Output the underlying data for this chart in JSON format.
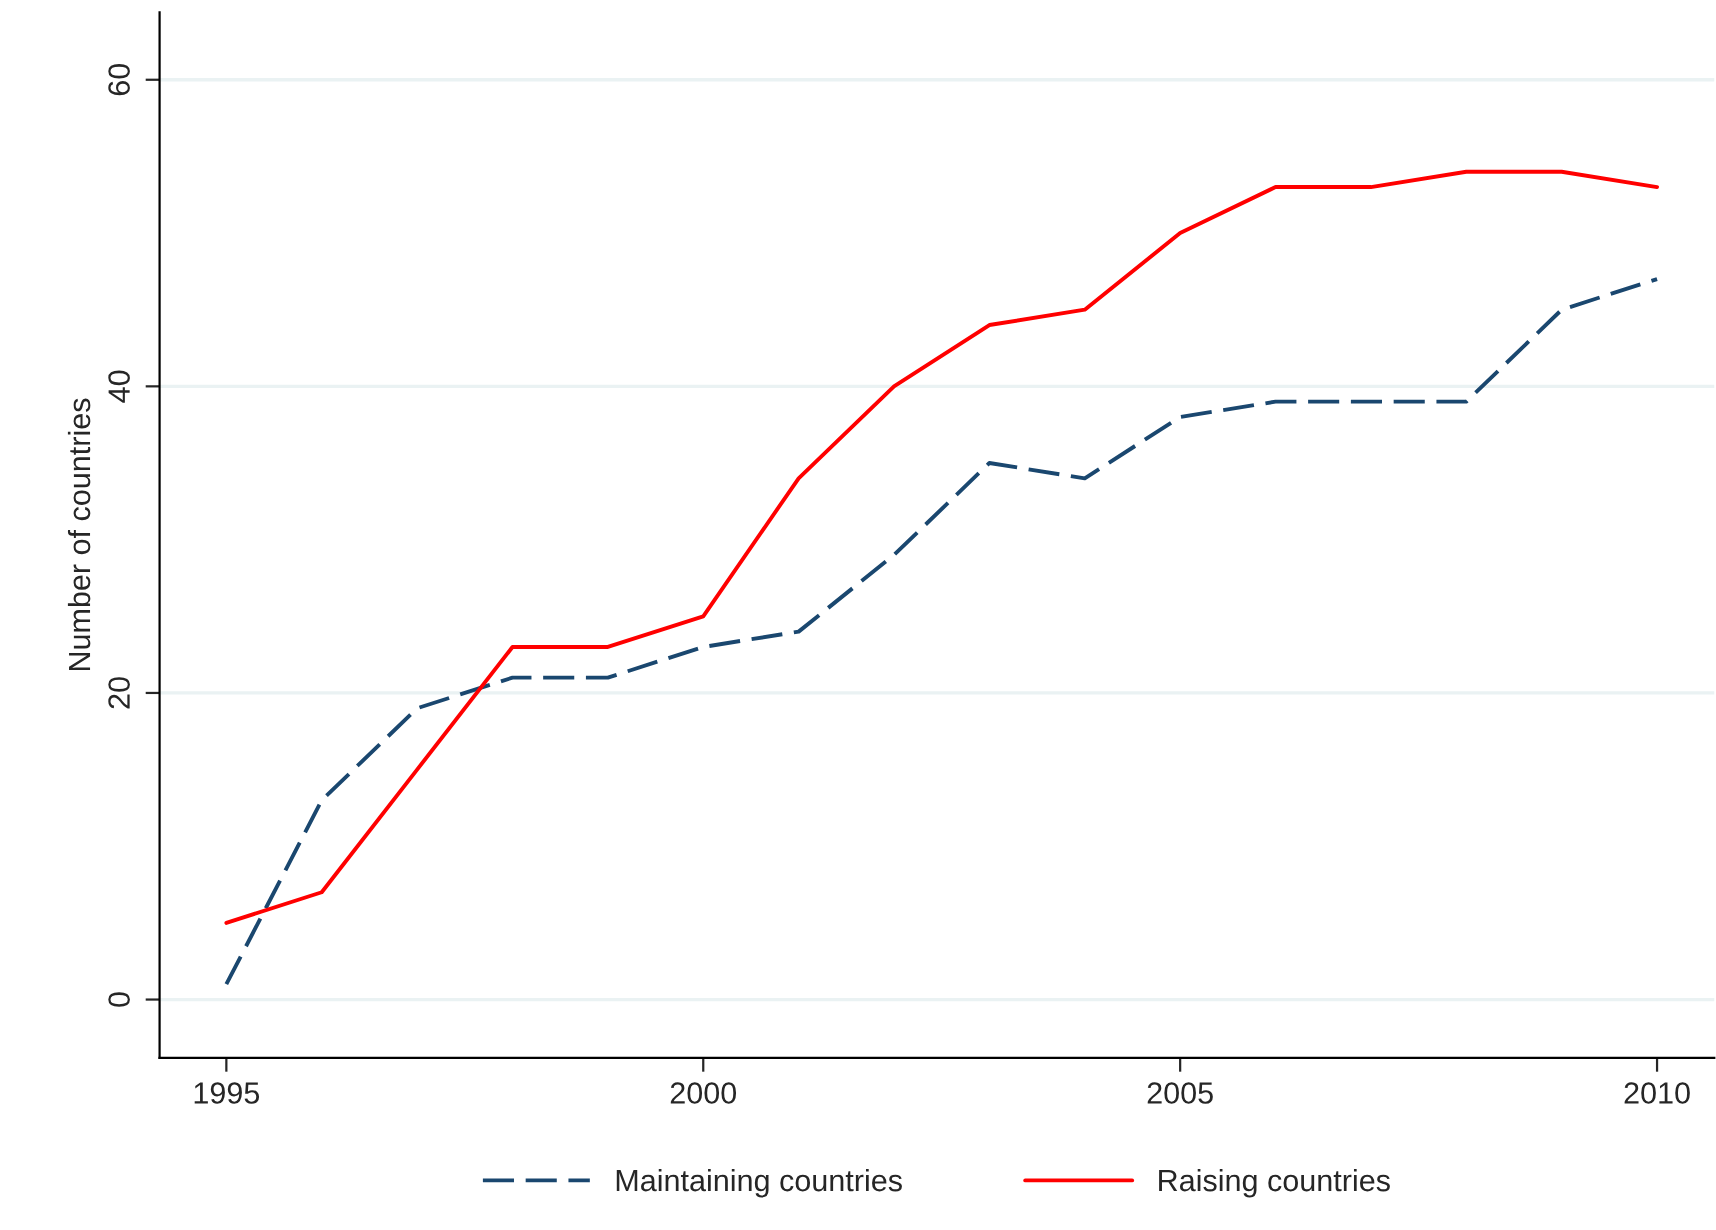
{
  "chart_data": {
    "type": "line",
    "ylabel": "Number of countries",
    "x": [
      1995,
      1996,
      1997,
      1998,
      1999,
      2000,
      2001,
      2002,
      2003,
      2004,
      2005,
      2006,
      2007,
      2008,
      2009,
      2010
    ],
    "series": [
      {
        "name": "Maintaining countries",
        "color": "#1a476f",
        "line_style": "dashed",
        "values": [
          1,
          13,
          19,
          21,
          21,
          23,
          24,
          29,
          35,
          34,
          38,
          39,
          39,
          39,
          45,
          47
        ]
      },
      {
        "name": "Raising countries",
        "color": "#ff0000",
        "line_style": "solid",
        "values": [
          5,
          7,
          15,
          23,
          23,
          25,
          34,
          40,
          44,
          45,
          50,
          53,
          53,
          54,
          54,
          53
        ]
      }
    ],
    "xlim": [
      1994.3,
      2010.6
    ],
    "xticks": [
      1995,
      2000,
      2005,
      2010
    ],
    "ylim": [
      -3.8,
      64.4
    ],
    "yticks": [
      0,
      20,
      40,
      60
    ],
    "grid": "y",
    "legend": "bottom"
  }
}
